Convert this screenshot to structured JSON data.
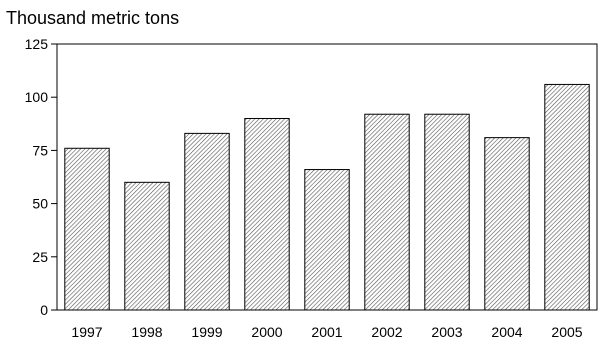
{
  "chart_data": {
    "type": "bar",
    "title": "",
    "ylabel": "Thousand metric tons",
    "xlabel": "",
    "categories": [
      "1997",
      "1998",
      "1999",
      "2000",
      "2001",
      "2002",
      "2003",
      "2004",
      "2005"
    ],
    "values": [
      76,
      60,
      83,
      90,
      66,
      92,
      92,
      81,
      106
    ],
    "ylim": [
      0,
      125
    ],
    "yticks": [
      0,
      25,
      50,
      75,
      100,
      125
    ],
    "ytick_labels": [
      "0",
      "25",
      "50",
      "75",
      "100",
      "125"
    ],
    "grid": false,
    "legend": "none",
    "bar_fill": "diagonal-hatch",
    "colors": {
      "bar_stroke": "#000000",
      "hatch": "#555555",
      "axis": "#000000",
      "background": "#ffffff"
    }
  }
}
